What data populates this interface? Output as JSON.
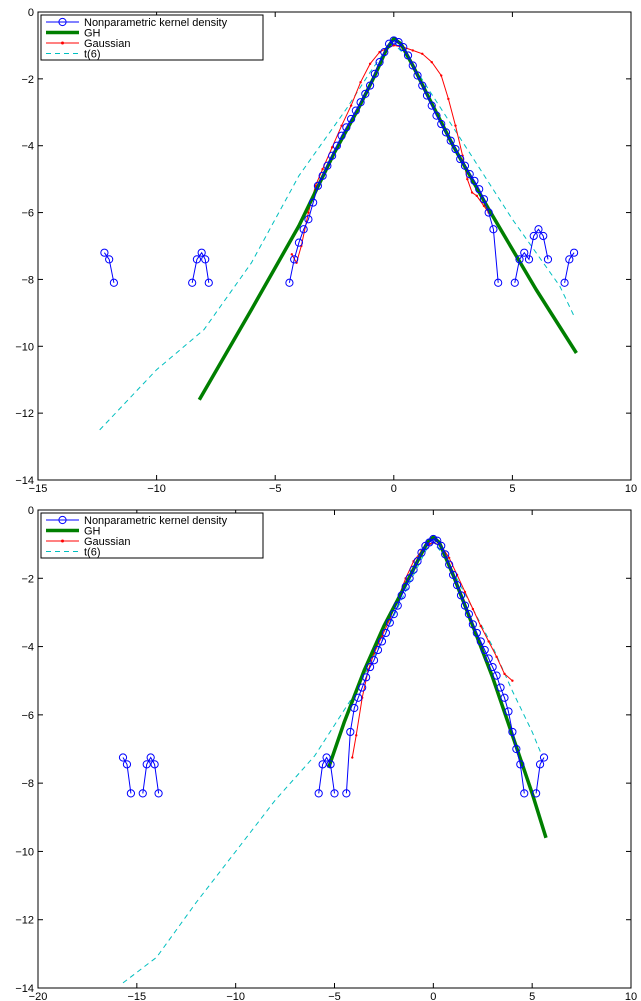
{
  "chart_data": [
    {
      "type": "line",
      "xlim": [
        -15,
        10
      ],
      "ylim": [
        -14,
        0
      ],
      "xticks": [
        -15,
        -10,
        -5,
        0,
        5,
        10
      ],
      "yticks": [
        -14,
        -12,
        -10,
        -8,
        -6,
        -4,
        -2,
        0
      ],
      "grid": false,
      "legend": "top-left",
      "series": [
        {
          "name": "Nonparametric kernel density",
          "style": "circle-line",
          "color": "#0000ff",
          "segments": [
            [
              [
                -12.2,
                -7.2
              ],
              [
                -12.0,
                -7.4
              ],
              [
                -11.8,
                -8.1
              ]
            ],
            [
              [
                -8.5,
                -8.1
              ],
              [
                -8.3,
                -7.4
              ],
              [
                -8.1,
                -7.2
              ],
              [
                -7.95,
                -7.4
              ],
              [
                -7.8,
                -8.1
              ]
            ],
            [
              [
                -4.4,
                -8.1
              ],
              [
                -4.2,
                -7.4
              ],
              [
                -4.0,
                -6.9
              ],
              [
                -3.8,
                -6.5
              ],
              [
                -3.6,
                -6.2
              ],
              [
                -3.4,
                -5.7
              ],
              [
                -3.2,
                -5.2
              ],
              [
                -3.0,
                -4.9
              ],
              [
                -2.8,
                -4.6
              ],
              [
                -2.6,
                -4.3
              ],
              [
                -2.4,
                -4.0
              ],
              [
                -2.2,
                -3.7
              ],
              [
                -2.0,
                -3.45
              ],
              [
                -1.8,
                -3.2
              ],
              [
                -1.6,
                -2.95
              ],
              [
                -1.4,
                -2.7
              ],
              [
                -1.2,
                -2.45
              ],
              [
                -1.0,
                -2.2
              ],
              [
                -0.8,
                -1.85
              ],
              [
                -0.6,
                -1.5
              ],
              [
                -0.4,
                -1.2
              ],
              [
                -0.2,
                -0.95
              ],
              [
                0.0,
                -0.85
              ],
              [
                0.2,
                -0.9
              ],
              [
                0.4,
                -1.05
              ],
              [
                0.6,
                -1.3
              ],
              [
                0.8,
                -1.6
              ],
              [
                1.0,
                -1.9
              ],
              [
                1.2,
                -2.2
              ],
              [
                1.4,
                -2.5
              ],
              [
                1.6,
                -2.8
              ],
              [
                1.8,
                -3.1
              ],
              [
                2.0,
                -3.35
              ],
              [
                2.2,
                -3.6
              ],
              [
                2.4,
                -3.85
              ],
              [
                2.6,
                -4.1
              ],
              [
                2.8,
                -4.4
              ],
              [
                3.0,
                -4.6
              ],
              [
                3.2,
                -4.85
              ],
              [
                3.4,
                -5.05
              ],
              [
                3.6,
                -5.3
              ],
              [
                3.8,
                -5.6
              ],
              [
                4.0,
                -6.0
              ],
              [
                4.2,
                -6.5
              ],
              [
                4.4,
                -8.1
              ]
            ],
            [
              [
                5.1,
                -8.1
              ],
              [
                5.3,
                -7.4
              ],
              [
                5.5,
                -7.2
              ],
              [
                5.7,
                -7.4
              ],
              [
                5.9,
                -6.7
              ],
              [
                6.1,
                -6.5
              ],
              [
                6.3,
                -6.7
              ],
              [
                6.5,
                -7.4
              ]
            ],
            [
              [
                7.2,
                -8.1
              ],
              [
                7.4,
                -7.4
              ],
              [
                7.6,
                -7.2
              ]
            ]
          ]
        },
        {
          "name": "GH",
          "style": "thick-line",
          "color": "#007f00",
          "points": [
            [
              -8.2,
              -11.6
            ],
            [
              -6.0,
              -8.9
            ],
            [
              -4.0,
              -6.4
            ],
            [
              -2.5,
              -4.2
            ],
            [
              -1.5,
              -2.9
            ],
            [
              -0.8,
              -1.9
            ],
            [
              -0.3,
              -1.1
            ],
            [
              0.0,
              -0.8
            ],
            [
              0.3,
              -0.95
            ],
            [
              0.8,
              -1.6
            ],
            [
              1.5,
              -2.6
            ],
            [
              2.5,
              -4.0
            ],
            [
              4.0,
              -5.9
            ],
            [
              6.0,
              -8.3
            ],
            [
              7.7,
              -10.2
            ]
          ]
        },
        {
          "name": "Gaussian",
          "style": "dot-line",
          "color": "#ff0000",
          "points": [
            [
              -4.3,
              -7.25
            ],
            [
              -4.1,
              -7.5
            ],
            [
              -3.9,
              -7.0
            ],
            [
              -3.6,
              -6.0
            ],
            [
              -3.3,
              -5.2
            ],
            [
              -3.0,
              -4.7
            ],
            [
              -2.6,
              -4.05
            ],
            [
              -2.2,
              -3.4
            ],
            [
              -1.8,
              -2.8
            ],
            [
              -1.4,
              -2.1
            ],
            [
              -1.0,
              -1.55
            ],
            [
              -0.6,
              -1.2
            ],
            [
              -0.2,
              -1.05
            ],
            [
              0.0,
              -1.0
            ],
            [
              0.4,
              -1.05
            ],
            [
              0.8,
              -1.15
            ],
            [
              1.2,
              -1.25
            ],
            [
              1.6,
              -1.5
            ],
            [
              2.0,
              -1.9
            ],
            [
              2.3,
              -2.6
            ],
            [
              2.6,
              -3.4
            ],
            [
              2.9,
              -4.3
            ],
            [
              3.1,
              -5.0
            ],
            [
              3.3,
              -5.4
            ],
            [
              3.5,
              -5.5
            ],
            [
              3.8,
              -5.8
            ],
            [
              4.0,
              -6.0
            ]
          ]
        },
        {
          "name": "t(6)",
          "style": "dashed-line",
          "color": "#00bfbf",
          "points": [
            [
              -12.4,
              -12.5
            ],
            [
              -10.0,
              -10.7
            ],
            [
              -8.0,
              -9.5
            ],
            [
              -6.0,
              -7.5
            ],
            [
              -4.0,
              -4.9
            ],
            [
              -3.0,
              -3.9
            ],
            [
              -2.0,
              -2.9
            ],
            [
              -1.0,
              -1.8
            ],
            [
              -0.3,
              -1.1
            ],
            [
              0.0,
              -0.95
            ],
            [
              0.5,
              -1.3
            ],
            [
              1.0,
              -1.8
            ],
            [
              2.0,
              -2.9
            ],
            [
              3.0,
              -4.0
            ],
            [
              4.0,
              -5.1
            ],
            [
              5.0,
              -6.2
            ],
            [
              6.0,
              -7.2
            ],
            [
              7.0,
              -8.2
            ],
            [
              7.6,
              -9.1
            ]
          ]
        }
      ]
    },
    {
      "type": "line",
      "xlim": [
        -20,
        10
      ],
      "ylim": [
        -14,
        0
      ],
      "xticks": [
        -20,
        -15,
        -10,
        -5,
        0,
        5,
        10
      ],
      "yticks": [
        -14,
        -12,
        -10,
        -8,
        -6,
        -4,
        -2,
        0
      ],
      "grid": false,
      "legend": "top-left",
      "series": [
        {
          "name": "Nonparametric kernel density",
          "style": "circle-line",
          "color": "#0000ff",
          "segments": [
            [
              [
                -15.7,
                -7.25
              ],
              [
                -15.5,
                -7.45
              ],
              [
                -15.3,
                -8.3
              ]
            ],
            [
              [
                -14.7,
                -8.3
              ],
              [
                -14.5,
                -7.45
              ],
              [
                -14.3,
                -7.25
              ],
              [
                -14.1,
                -7.45
              ],
              [
                -13.9,
                -8.3
              ]
            ],
            [
              [
                -5.8,
                -8.3
              ],
              [
                -5.6,
                -7.45
              ],
              [
                -5.4,
                -7.25
              ],
              [
                -5.2,
                -7.45
              ],
              [
                -5.0,
                -8.3
              ]
            ],
            [
              [
                -4.4,
                -8.3
              ],
              [
                -4.2,
                -6.5
              ],
              [
                -4.0,
                -5.8
              ],
              [
                -3.8,
                -5.5
              ],
              [
                -3.6,
                -5.2
              ],
              [
                -3.4,
                -4.9
              ],
              [
                -3.2,
                -4.6
              ],
              [
                -3.0,
                -4.4
              ],
              [
                -2.8,
                -4.1
              ],
              [
                -2.6,
                -3.85
              ],
              [
                -2.4,
                -3.6
              ],
              [
                -2.2,
                -3.3
              ],
              [
                -2.0,
                -3.05
              ],
              [
                -1.8,
                -2.8
              ],
              [
                -1.6,
                -2.5
              ],
              [
                -1.4,
                -2.25
              ],
              [
                -1.2,
                -2.0
              ],
              [
                -1.0,
                -1.75
              ],
              [
                -0.8,
                -1.5
              ],
              [
                -0.6,
                -1.25
              ],
              [
                -0.4,
                -1.05
              ],
              [
                -0.2,
                -0.95
              ],
              [
                0.0,
                -0.85
              ],
              [
                0.2,
                -0.9
              ],
              [
                0.4,
                -1.05
              ],
              [
                0.6,
                -1.3
              ],
              [
                0.8,
                -1.6
              ],
              [
                1.0,
                -1.9
              ],
              [
                1.2,
                -2.2
              ],
              [
                1.4,
                -2.5
              ],
              [
                1.6,
                -2.8
              ],
              [
                1.8,
                -3.05
              ],
              [
                2.0,
                -3.35
              ],
              [
                2.2,
                -3.6
              ],
              [
                2.4,
                -3.85
              ],
              [
                2.6,
                -4.1
              ],
              [
                2.8,
                -4.35
              ],
              [
                3.0,
                -4.6
              ],
              [
                3.2,
                -4.85
              ],
              [
                3.4,
                -5.2
              ],
              [
                3.6,
                -5.5
              ],
              [
                3.8,
                -5.9
              ],
              [
                4.0,
                -6.5
              ],
              [
                4.2,
                -7.0
              ],
              [
                4.4,
                -7.45
              ],
              [
                4.6,
                -8.3
              ]
            ],
            [
              [
                5.2,
                -8.3
              ],
              [
                5.4,
                -7.45
              ],
              [
                5.6,
                -7.25
              ]
            ]
          ]
        },
        {
          "name": "GH",
          "style": "thick-line",
          "color": "#007f00",
          "points": [
            [
              -5.3,
              -7.55
            ],
            [
              -4.5,
              -6.2
            ],
            [
              -3.5,
              -4.7
            ],
            [
              -2.5,
              -3.4
            ],
            [
              -1.5,
              -2.3
            ],
            [
              -0.8,
              -1.5
            ],
            [
              -0.3,
              -0.95
            ],
            [
              0.0,
              -0.8
            ],
            [
              0.3,
              -0.95
            ],
            [
              1.0,
              -1.9
            ],
            [
              2.0,
              -3.4
            ],
            [
              3.0,
              -4.9
            ],
            [
              4.0,
              -6.6
            ],
            [
              5.0,
              -8.3
            ],
            [
              5.7,
              -9.6
            ]
          ]
        },
        {
          "name": "Gaussian",
          "style": "dot-line",
          "color": "#ff0000",
          "points": [
            [
              -4.1,
              -7.25
            ],
            [
              -3.9,
              -6.6
            ],
            [
              -3.6,
              -5.5
            ],
            [
              -3.3,
              -4.7
            ],
            [
              -3.0,
              -4.2
            ],
            [
              -2.6,
              -3.7
            ],
            [
              -2.2,
              -3.2
            ],
            [
              -1.8,
              -2.6
            ],
            [
              -1.4,
              -2.0
            ],
            [
              -1.0,
              -1.5
            ],
            [
              -0.6,
              -1.2
            ],
            [
              -0.2,
              -1.0
            ],
            [
              0.0,
              -0.95
            ],
            [
              0.4,
              -1.05
            ],
            [
              0.8,
              -1.4
            ],
            [
              1.2,
              -1.9
            ],
            [
              1.6,
              -2.4
            ],
            [
              2.0,
              -2.9
            ],
            [
              2.4,
              -3.4
            ],
            [
              2.8,
              -3.85
            ],
            [
              3.2,
              -4.3
            ],
            [
              3.6,
              -4.8
            ],
            [
              4.0,
              -5.0
            ]
          ]
        },
        {
          "name": "t(6)",
          "style": "dashed-line",
          "color": "#00bfbf",
          "points": [
            [
              -15.7,
              -13.85
            ],
            [
              -14.0,
              -13.1
            ],
            [
              -12.0,
              -11.5
            ],
            [
              -10.0,
              -10.0
            ],
            [
              -8.0,
              -8.5
            ],
            [
              -6.0,
              -7.2
            ],
            [
              -4.0,
              -5.4
            ],
            [
              -3.0,
              -4.3
            ],
            [
              -2.0,
              -3.1
            ],
            [
              -1.0,
              -1.9
            ],
            [
              -0.3,
              -1.1
            ],
            [
              0.0,
              -0.95
            ],
            [
              0.5,
              -1.3
            ],
            [
              1.0,
              -1.8
            ],
            [
              2.0,
              -2.9
            ],
            [
              3.0,
              -4.0
            ],
            [
              4.0,
              -5.3
            ],
            [
              5.0,
              -6.5
            ],
            [
              5.5,
              -7.2
            ]
          ]
        }
      ]
    }
  ]
}
